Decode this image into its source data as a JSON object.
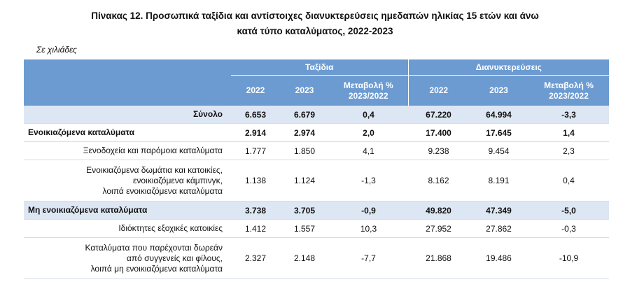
{
  "header": {
    "title_lines": [
      "Πίνακας 12. Προσωπικά ταξίδια και αντίστοιχες διανυκτερεύσεις ημεδαπών ηλικίας 15 ετών και άνω",
      "κατά τύπο καταλύματος, 2022-2023"
    ],
    "unit_note": "Σε χιλιάδες"
  },
  "table": {
    "groups": [
      "Ταξίδια",
      "Διανυκτερεύσεις"
    ],
    "columns": [
      "2022",
      "2023",
      "Μεταβολή % 2023/2022",
      "2022",
      "2023",
      "Μεταβολή % 2023/2022"
    ],
    "rows": [
      {
        "label": [
          "Σύνολο"
        ],
        "cells": [
          "6.653",
          "6.679",
          "0,4",
          "67.220",
          "64.994",
          "-3,3"
        ]
      },
      {
        "label": [
          "Ενοικιαζόμενα καταλύματα"
        ],
        "cells": [
          "2.914",
          "2.974",
          "2,0",
          "17.400",
          "17.645",
          "1,4"
        ]
      },
      {
        "label": [
          "Ξενοδοχεία και παρόμοια καταλύματα"
        ],
        "cells": [
          "1.777",
          "1.850",
          "4,1",
          "9.238",
          "9.454",
          "2,3"
        ]
      },
      {
        "label": [
          "Ενοικιαζόμενα δωμάτια και κατοικίες,",
          "ενοικιαζόμενα κάμπινγκ,",
          "λοιπά ενοικιαζόμενα καταλύματα"
        ],
        "cells": [
          "1.138",
          "1.124",
          "-1,3",
          "8.162",
          "8.191",
          "0,4"
        ]
      },
      {
        "label": [
          "Μη ενοικιαζόμενα καταλύματα"
        ],
        "cells": [
          "3.738",
          "3.705",
          "-0,9",
          "49.820",
          "47.349",
          "-5,0"
        ]
      },
      {
        "label": [
          "Ιδιόκτητες εξοχικές κατοικίες"
        ],
        "cells": [
          "1.412",
          "1.557",
          "10,3",
          "27.952",
          "27.862",
          "-0,3"
        ]
      },
      {
        "label": [
          "Καταλύματα που παρέχονται δωρεάν",
          "από συγγενείς και φίλους,",
          "λοιπά μη ενοικιαζόμενα καταλύματα"
        ],
        "cells": [
          "2.327",
          "2.148",
          "-7,7",
          "21.868",
          "19.486",
          "-10,9"
        ]
      }
    ]
  }
}
